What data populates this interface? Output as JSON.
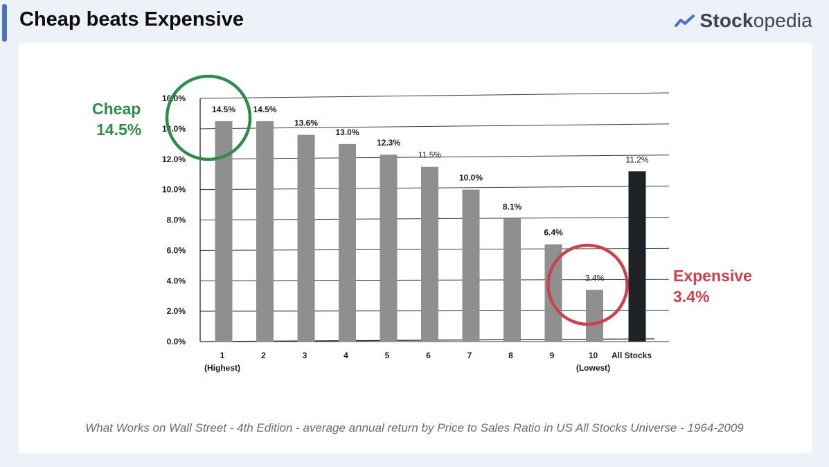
{
  "header": {
    "title": "Cheap beats Expensive",
    "brand_strong": "Stock",
    "brand_light": "opedia",
    "brand_icon": "chart-line-icon"
  },
  "callouts": {
    "cheap_label": "Cheap",
    "cheap_value": "14.5%",
    "expensive_label": "Expensive",
    "expensive_value": "3.4%"
  },
  "caption": "What Works on Wall Street - 4th Edition - average annual return by Price to Sales Ratio in US All Stocks Universe - 1964-2009",
  "colors": {
    "accent": "#4a72c4",
    "cheap": "#2f8a4d",
    "expensive": "#c9424d",
    "bar": "#8f8f8f",
    "all_stocks_bar": "#1f2326"
  },
  "chart_data": {
    "type": "bar",
    "categories": [
      "1",
      "2",
      "3",
      "4",
      "5",
      "6",
      "7",
      "8",
      "9",
      "10",
      "All Stocks"
    ],
    "category_sublabels": [
      "(Highest)",
      "",
      "",
      "",
      "",
      "",
      "",
      "",
      "",
      "(Lowest)",
      ""
    ],
    "values": [
      14.5,
      14.5,
      13.6,
      13.0,
      12.3,
      11.5,
      10.0,
      8.1,
      6.4,
      3.4,
      11.2
    ],
    "value_labels": [
      "14.5%",
      "14.5%",
      "13.6%",
      "13.0%",
      "12.3%",
      "11.5%",
      "10.0%",
      "8.1%",
      "6.4%",
      "3.4%",
      "11.2%"
    ],
    "yticks": [
      "0.0%",
      "2.0%",
      "4.0%",
      "6.0%",
      "8.0%",
      "10.0%",
      "12.0%",
      "14.0%",
      "16.0%"
    ],
    "ylim": [
      0,
      16
    ],
    "grid": true,
    "highlight": {
      "cheap_index": 0,
      "expensive_index": 9
    },
    "title": "",
    "xlabel": "",
    "ylabel": ""
  }
}
